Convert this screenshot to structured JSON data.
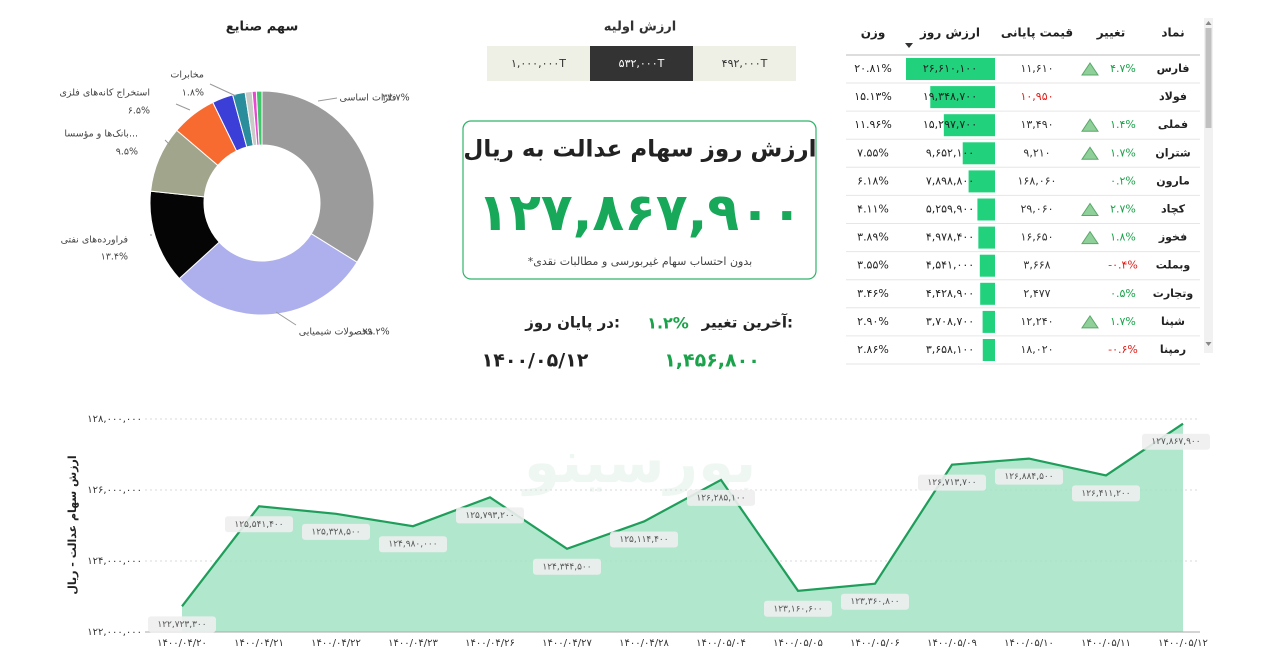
{
  "chart_data": [
    {
      "type": "pie",
      "title": "سهم صنایع",
      "categories": [
        "فلزات اساسی",
        "محصولات شیمیایی",
        "فراورده‌های نفتی",
        "بانک‌ها و مؤسسا...",
        "استخراج کانه‌های فلزی",
        null,
        "مخابرات",
        null,
        null,
        null
      ],
      "values": [
        33.7,
        29.2,
        13.4,
        9.5,
        6.5,
        3.0,
        1.8,
        1.0,
        0.6,
        0.8
      ],
      "value_labels": [
        "۳۳.۷%",
        "۲۹.۲%",
        "۱۳.۴%",
        "۹.۵%",
        "۶.۵%",
        null,
        "۱.۸%",
        null,
        null,
        null
      ],
      "colors": [
        "#9b9b9b",
        "#aeb0ee",
        "#050505",
        "#a1a58b",
        "#f86b30",
        "#3b3fd8",
        "#2a8d9c",
        "#c9cbc9",
        "#e64bd0",
        "#3fc66b"
      ]
    },
    {
      "type": "area",
      "y_label": "ارزش سهام عدالت - ریال",
      "watermark": "بورسینو",
      "categories": [
        "۱۴۰۰/۰۴/۲۰",
        "۱۴۰۰/۰۴/۲۱",
        "۱۴۰۰/۰۴/۲۲",
        "۱۴۰۰/۰۴/۲۳",
        "۱۴۰۰/۰۴/۲۶",
        "۱۴۰۰/۰۴/۲۷",
        "۱۴۰۰/۰۴/۲۸",
        "۱۴۰۰/۰۵/۰۴",
        "۱۴۰۰/۰۵/۰۵",
        "۱۴۰۰/۰۵/۰۶",
        "۱۴۰۰/۰۵/۰۹",
        "۱۴۰۰/۰۵/۱۰",
        "۱۴۰۰/۰۵/۱۱",
        "۱۴۰۰/۰۵/۱۲"
      ],
      "values": [
        122723300,
        125541400,
        125328500,
        124980000,
        125793200,
        124344500,
        125114400,
        126285100,
        123160600,
        123360800,
        126713700,
        126884500,
        126411200,
        127867900
      ],
      "value_labels": [
        "۱۲۲,۷۲۳,۳۰۰",
        "۱۲۵,۵۴۱,۴۰۰",
        "۱۲۵,۳۲۸,۵۰۰",
        "۱۲۴,۹۸۰,۰۰۰",
        "۱۲۵,۷۹۳,۲۰۰",
        "۱۲۴,۳۴۴,۵۰۰",
        "۱۲۵,۱۱۴,۴۰۰",
        "۱۲۶,۲۸۵,۱۰۰",
        "۱۲۳,۱۶۰,۶۰۰",
        "۱۲۳,۳۶۰,۸۰۰",
        "۱۲۶,۷۱۳,۷۰۰",
        "۱۲۶,۸۸۴,۵۰۰",
        "۱۲۶,۴۱۱,۲۰۰",
        "۱۲۷,۸۶۷,۹۰۰"
      ],
      "color": "#1e9e5a",
      "fill_color": "#a3e3c4",
      "ylim": [
        122000000,
        128000000
      ],
      "yticks": [
        {
          "value": 122000000,
          "label": "۱۲۲,۰۰۰,۰۰۰"
        },
        {
          "value": 124000000,
          "label": "۱۲۴,۰۰۰,۰۰۰"
        },
        {
          "value": 126000000,
          "label": "۱۲۶,۰۰۰,۰۰۰"
        },
        {
          "value": 128000000,
          "label": "۱۲۸,۰۰۰,۰۰۰"
        }
      ],
      "grid": true
    }
  ],
  "initial_value": {
    "title": "ارزش اولیه",
    "options": [
      "۴۹۲,۰۰۰T",
      "۵۳۲,۰۰۰T",
      "۱,۰۰۰,۰۰۰T"
    ],
    "selected": 1
  },
  "summary": {
    "title": "ارزش روز سهام عدالت به ریال",
    "value": "۱۲۷,۸۶۷,۹۰۰",
    "note": "*بدون احتساب سهام غیربورسی و مطالبات نقدی",
    "last_change_label": "آخرین تغییر:",
    "last_change": "۱.۲%",
    "last_change_value": "۱,۴۵۶,۸۰۰",
    "end_of_day_label": "در پایان روز:",
    "date": "۱۴۰۰/۰۵/۱۲"
  },
  "table": {
    "headers": [
      "نماد",
      "تغییر",
      "قیمت پایانی",
      "ارزش روز",
      "وزن"
    ],
    "bar_color": "#22d17c",
    "rows": [
      {
        "symbol": "فارس",
        "change": "۴.۷%",
        "up": true,
        "price": "۱۱,۶۱۰",
        "value": {
          "value": 26610100,
          "label": "۲۶,۶۱۰,۱۰۰"
        },
        "weight": "۲۰.۸۱%"
      },
      {
        "symbol": "فولاد",
        "up": false,
        "price": "۱۰,۹۵۰",
        "price_color": "#e0201b",
        "value": {
          "value": 19348700,
          "label": "۱۹,۳۴۸,۷۰۰"
        },
        "weight": "۱۵.۱۳%"
      },
      {
        "symbol": "فملی",
        "change": "۱.۴%",
        "up": true,
        "price": "۱۳,۴۹۰",
        "value": {
          "value": 15297700,
          "label": "۱۵,۲۹۷,۷۰۰"
        },
        "weight": "۱۱.۹۶%"
      },
      {
        "symbol": "شتران",
        "change": "۱.۷%",
        "up": true,
        "price": "۹,۲۱۰",
        "value": {
          "value": 9652100,
          "label": "۹,۶۵۲,۱۰۰"
        },
        "weight": "۷.۵۵%"
      },
      {
        "symbol": "مارون",
        "change": "۰.۲%",
        "up": false,
        "price": "۱۶۸,۰۶۰",
        "value": {
          "value": 7898800,
          "label": "۷,۸۹۸,۸۰۰"
        },
        "weight": "۶.۱۸%"
      },
      {
        "symbol": "کچاد",
        "change": "۲.۷%",
        "up": true,
        "price": "۲۹,۰۶۰",
        "value": {
          "value": 5259900,
          "label": "۵,۲۵۹,۹۰۰"
        },
        "weight": "۴.۱۱%"
      },
      {
        "symbol": "فخوز",
        "change": "۱.۸%",
        "up": true,
        "price": "۱۶,۶۵۰",
        "value": {
          "value": 4978400,
          "label": "۴,۹۷۸,۴۰۰"
        },
        "weight": "۳.۸۹%"
      },
      {
        "symbol": "وبملت",
        "change": "-۰.۴%",
        "up": false,
        "price": "۳,۶۶۸",
        "value": {
          "value": 4541000,
          "label": "۴,۵۴۱,۰۰۰"
        },
        "weight": "۳.۵۵%"
      },
      {
        "symbol": "وتجارت",
        "change": "۰.۵%",
        "up": false,
        "price": "۲,۴۷۷",
        "value": {
          "value": 4428900,
          "label": "۴,۴۲۸,۹۰۰"
        },
        "weight": "۳.۴۶%"
      },
      {
        "symbol": "شپنا",
        "change": "۱.۷%",
        "up": true,
        "price": "۱۲,۲۴۰",
        "value": {
          "value": 3708700,
          "label": "۳,۷۰۸,۷۰۰"
        },
        "weight": "۲.۹۰%"
      },
      {
        "symbol": "رمپنا",
        "change": "-۰.۶%",
        "up": false,
        "price": "۱۸,۰۲۰",
        "value": {
          "value": 3658100,
          "label": "۳,۶۵۸,۱۰۰"
        },
        "weight": "۲.۸۶%"
      }
    ]
  }
}
